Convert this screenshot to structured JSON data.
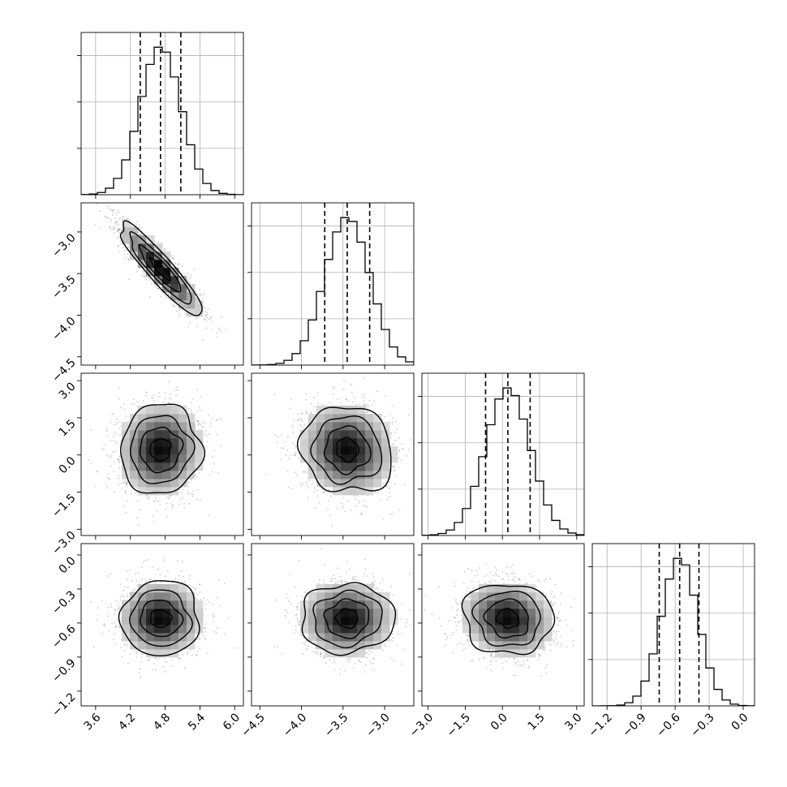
{
  "chart_data": {
    "type": "corner",
    "grid_size": 4,
    "grid": true,
    "variables": [
      {
        "mean": 4.72,
        "sd": 0.35,
        "range": [
          3.35,
          6.15
        ],
        "q16": 4.37,
        "q50": 4.72,
        "q84": 5.07,
        "ticks": [
          3.6,
          4.2,
          4.8,
          5.4,
          6.0
        ],
        "tick_labels": [
          "3.6",
          "4.2",
          "4.8",
          "5.4",
          "6.0"
        ]
      },
      {
        "mean": -3.45,
        "sd": 0.27,
        "range": [
          -4.6,
          -2.65
        ],
        "q16": -3.72,
        "q50": -3.45,
        "q84": -3.18,
        "ticks": [
          -4.5,
          -4.0,
          -3.5,
          -3.0
        ],
        "tick_labels": [
          "−4.5",
          "−4.0",
          "−3.5",
          "−3.0"
        ]
      },
      {
        "mean": 0.22,
        "sd": 0.9,
        "range": [
          -3.25,
          3.3
        ],
        "q16": -0.68,
        "q50": 0.22,
        "q84": 1.12,
        "ticks": [
          -3.0,
          -1.5,
          0.0,
          1.5,
          3.0
        ],
        "tick_labels": [
          "−3.0",
          "−1.5",
          "0.0",
          "1.5",
          "3.0"
        ]
      },
      {
        "mean": -0.56,
        "sd": 0.16,
        "range": [
          -1.33,
          0.1
        ],
        "q16": -0.74,
        "q50": -0.56,
        "q84": -0.39,
        "ticks": [
          -1.2,
          -0.9,
          -0.6,
          -0.3,
          0.0
        ],
        "tick_labels": [
          "−1.2",
          "−0.9",
          "−0.6",
          "−0.3",
          "0.0"
        ]
      }
    ],
    "correlations": [
      {
        "pair": [
          0,
          1
        ],
        "rho": -0.9
      },
      {
        "pair": [
          0,
          2
        ],
        "rho": 0.05
      },
      {
        "pair": [
          1,
          2
        ],
        "rho": -0.1
      },
      {
        "pair": [
          0,
          3
        ],
        "rho": 0.0
      },
      {
        "pair": [
          1,
          3
        ],
        "rho": 0.0
      },
      {
        "pair": [
          2,
          3
        ],
        "rho": -0.12
      }
    ],
    "hist_bins": 20,
    "density_bins": 20,
    "contour_levels_sigma": [
      0.5,
      1.0,
      1.5,
      2.0
    ],
    "scatter_color": "#7a7a7a",
    "line_color": "#000000",
    "grid_color": "#b0b0b0"
  }
}
